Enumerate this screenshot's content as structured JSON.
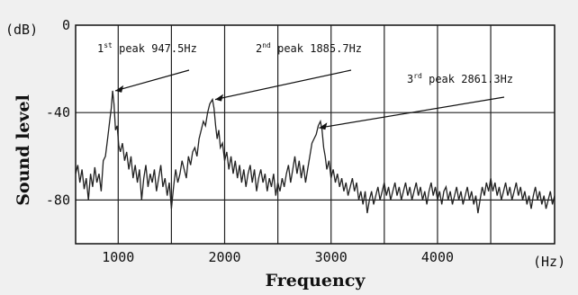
{
  "chart_data": {
    "type": "line",
    "title": "",
    "xlabel": "Frequency",
    "ylabel": "Sound level",
    "x_unit": "(Hz)",
    "y_unit": "(dB)",
    "xlim": [
      600,
      5100
    ],
    "ylim": [
      -100,
      0
    ],
    "xticks": [
      1000,
      2000,
      3000,
      4000
    ],
    "xtick_labels": [
      "1000",
      "2000",
      "3000",
      "4000"
    ],
    "yticks": [
      0,
      -40,
      -80
    ],
    "ytick_labels": [
      "0",
      "-40",
      "-80"
    ],
    "vertical_gridlines": [
      1000,
      1500,
      2000,
      2500,
      3000,
      3500,
      4000,
      4500
    ],
    "horizontal_gridlines": [
      -40,
      -80
    ],
    "series": [
      {
        "color": "#222222",
        "points": [
          [
            600,
            -68
          ],
          [
            620,
            -64
          ],
          [
            640,
            -72
          ],
          [
            660,
            -66
          ],
          [
            680,
            -75
          ],
          [
            700,
            -70
          ],
          [
            720,
            -80
          ],
          [
            740,
            -68
          ],
          [
            760,
            -74
          ],
          [
            780,
            -65
          ],
          [
            800,
            -72
          ],
          [
            820,
            -68
          ],
          [
            840,
            -76
          ],
          [
            860,
            -62
          ],
          [
            880,
            -60
          ],
          [
            900,
            -52
          ],
          [
            920,
            -44
          ],
          [
            935,
            -38
          ],
          [
            947.5,
            -30
          ],
          [
            960,
            -36
          ],
          [
            975,
            -48
          ],
          [
            990,
            -46
          ],
          [
            1005,
            -55
          ],
          [
            1020,
            -58
          ],
          [
            1040,
            -54
          ],
          [
            1060,
            -62
          ],
          [
            1080,
            -58
          ],
          [
            1100,
            -66
          ],
          [
            1120,
            -60
          ],
          [
            1140,
            -70
          ],
          [
            1160,
            -64
          ],
          [
            1180,
            -72
          ],
          [
            1200,
            -66
          ],
          [
            1220,
            -80
          ],
          [
            1240,
            -70
          ],
          [
            1260,
            -64
          ],
          [
            1280,
            -74
          ],
          [
            1300,
            -68
          ],
          [
            1320,
            -72
          ],
          [
            1340,
            -66
          ],
          [
            1360,
            -76
          ],
          [
            1380,
            -70
          ],
          [
            1400,
            -64
          ],
          [
            1420,
            -74
          ],
          [
            1440,
            -70
          ],
          [
            1460,
            -78
          ],
          [
            1480,
            -72
          ],
          [
            1500,
            -84
          ],
          [
            1520,
            -74
          ],
          [
            1540,
            -66
          ],
          [
            1560,
            -72
          ],
          [
            1580,
            -68
          ],
          [
            1600,
            -62
          ],
          [
            1620,
            -66
          ],
          [
            1640,
            -70
          ],
          [
            1660,
            -60
          ],
          [
            1680,
            -64
          ],
          [
            1700,
            -58
          ],
          [
            1720,
            -56
          ],
          [
            1740,
            -60
          ],
          [
            1760,
            -52
          ],
          [
            1780,
            -48
          ],
          [
            1800,
            -44
          ],
          [
            1820,
            -46
          ],
          [
            1840,
            -40
          ],
          [
            1860,
            -36
          ],
          [
            1885.7,
            -34
          ],
          [
            1900,
            -38
          ],
          [
            1915,
            -46
          ],
          [
            1930,
            -52
          ],
          [
            1945,
            -48
          ],
          [
            1960,
            -56
          ],
          [
            1980,
            -54
          ],
          [
            2000,
            -62
          ],
          [
            2020,
            -58
          ],
          [
            2040,
            -66
          ],
          [
            2060,
            -60
          ],
          [
            2080,
            -68
          ],
          [
            2100,
            -62
          ],
          [
            2120,
            -70
          ],
          [
            2140,
            -64
          ],
          [
            2160,
            -72
          ],
          [
            2180,
            -66
          ],
          [
            2200,
            -74
          ],
          [
            2220,
            -68
          ],
          [
            2240,
            -64
          ],
          [
            2260,
            -72
          ],
          [
            2280,
            -66
          ],
          [
            2300,
            -76
          ],
          [
            2320,
            -70
          ],
          [
            2340,
            -66
          ],
          [
            2360,
            -72
          ],
          [
            2380,
            -68
          ],
          [
            2400,
            -76
          ],
          [
            2420,
            -70
          ],
          [
            2440,
            -74
          ],
          [
            2460,
            -68
          ],
          [
            2480,
            -78
          ],
          [
            2500,
            -72
          ],
          [
            2520,
            -76
          ],
          [
            2540,
            -70
          ],
          [
            2560,
            -74
          ],
          [
            2580,
            -68
          ],
          [
            2600,
            -64
          ],
          [
            2620,
            -72
          ],
          [
            2640,
            -66
          ],
          [
            2660,
            -60
          ],
          [
            2680,
            -68
          ],
          [
            2700,
            -62
          ],
          [
            2720,
            -70
          ],
          [
            2740,
            -64
          ],
          [
            2760,
            -72
          ],
          [
            2780,
            -66
          ],
          [
            2800,
            -60
          ],
          [
            2820,
            -54
          ],
          [
            2840,
            -52
          ],
          [
            2860,
            -50
          ],
          [
            2880,
            -46
          ],
          [
            2900,
            -44
          ],
          [
            2915,
            -48
          ],
          [
            2930,
            -56
          ],
          [
            2945,
            -60
          ],
          [
            2960,
            -66
          ],
          [
            2980,
            -62
          ],
          [
            3000,
            -70
          ],
          [
            3020,
            -66
          ],
          [
            3040,
            -72
          ],
          [
            3060,
            -68
          ],
          [
            3080,
            -74
          ],
          [
            3100,
            -70
          ],
          [
            3120,
            -76
          ],
          [
            3140,
            -72
          ],
          [
            3160,
            -78
          ],
          [
            3180,
            -74
          ],
          [
            3200,
            -70
          ],
          [
            3220,
            -76
          ],
          [
            3240,
            -72
          ],
          [
            3260,
            -80
          ],
          [
            3280,
            -76
          ],
          [
            3300,
            -82
          ],
          [
            3320,
            -76
          ],
          [
            3340,
            -86
          ],
          [
            3360,
            -80
          ],
          [
            3380,
            -76
          ],
          [
            3400,
            -82
          ],
          [
            3420,
            -78
          ],
          [
            3440,
            -74
          ],
          [
            3460,
            -80
          ],
          [
            3480,
            -76
          ],
          [
            3500,
            -72
          ],
          [
            3520,
            -78
          ],
          [
            3540,
            -74
          ],
          [
            3560,
            -80
          ],
          [
            3580,
            -76
          ],
          [
            3600,
            -72
          ],
          [
            3620,
            -78
          ],
          [
            3640,
            -74
          ],
          [
            3660,
            -80
          ],
          [
            3680,
            -76
          ],
          [
            3700,
            -72
          ],
          [
            3720,
            -78
          ],
          [
            3740,
            -74
          ],
          [
            3760,
            -80
          ],
          [
            3780,
            -76
          ],
          [
            3800,
            -72
          ],
          [
            3820,
            -78
          ],
          [
            3840,
            -74
          ],
          [
            3860,
            -80
          ],
          [
            3880,
            -76
          ],
          [
            3900,
            -82
          ],
          [
            3920,
            -76
          ],
          [
            3940,
            -72
          ],
          [
            3960,
            -78
          ],
          [
            3980,
            -74
          ],
          [
            4000,
            -80
          ],
          [
            4020,
            -76
          ],
          [
            4040,
            -82
          ],
          [
            4060,
            -76
          ],
          [
            4080,
            -74
          ],
          [
            4100,
            -80
          ],
          [
            4120,
            -76
          ],
          [
            4140,
            -82
          ],
          [
            4160,
            -78
          ],
          [
            4180,
            -74
          ],
          [
            4200,
            -80
          ],
          [
            4220,
            -76
          ],
          [
            4240,
            -82
          ],
          [
            4260,
            -78
          ],
          [
            4280,
            -74
          ],
          [
            4300,
            -80
          ],
          [
            4320,
            -76
          ],
          [
            4340,
            -82
          ],
          [
            4360,
            -78
          ],
          [
            4380,
            -86
          ],
          [
            4400,
            -80
          ],
          [
            4420,
            -74
          ],
          [
            4440,
            -78
          ],
          [
            4460,
            -72
          ],
          [
            4480,
            -76
          ],
          [
            4500,
            -70
          ],
          [
            4520,
            -76
          ],
          [
            4540,
            -72
          ],
          [
            4560,
            -78
          ],
          [
            4580,
            -74
          ],
          [
            4600,
            -80
          ],
          [
            4620,
            -76
          ],
          [
            4640,
            -72
          ],
          [
            4660,
            -78
          ],
          [
            4680,
            -74
          ],
          [
            4700,
            -80
          ],
          [
            4720,
            -76
          ],
          [
            4740,
            -72
          ],
          [
            4760,
            -78
          ],
          [
            4780,
            -74
          ],
          [
            4800,
            -80
          ],
          [
            4820,
            -76
          ],
          [
            4840,
            -82
          ],
          [
            4860,
            -78
          ],
          [
            4880,
            -84
          ],
          [
            4900,
            -78
          ],
          [
            4920,
            -74
          ],
          [
            4940,
            -80
          ],
          [
            4960,
            -76
          ],
          [
            4980,
            -82
          ],
          [
            5000,
            -78
          ],
          [
            5020,
            -84
          ],
          [
            5040,
            -80
          ],
          [
            5060,
            -76
          ],
          [
            5080,
            -82
          ],
          [
            5100,
            -78
          ]
        ]
      }
    ],
    "annotations": [
      {
        "sup": "st",
        "text": "peak 947.5Hz",
        "pre": "1",
        "arrow_to": [
          947.5,
          -30
        ]
      },
      {
        "sup": "nd",
        "text": "peak 1885.7Hz",
        "pre": "2",
        "arrow_to": [
          1885.7,
          -34
        ]
      },
      {
        "sup": "rd",
        "text": "peak 2861.3Hz",
        "pre": "3",
        "arrow_to": [
          2861.3,
          -47
        ]
      }
    ],
    "grid": true,
    "legend": "none"
  }
}
